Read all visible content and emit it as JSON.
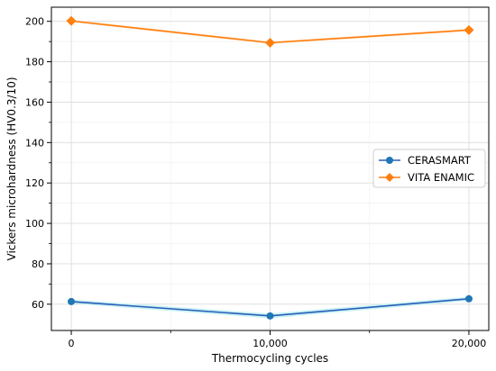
{
  "chart_data": {
    "type": "line",
    "xlabel": "Thermocycling cycles",
    "ylabel": "Vickers microhardness (HV0.3/10)",
    "x": [
      0,
      10000,
      20000
    ],
    "x_tick_labels": [
      "0",
      "10,000",
      "20,000"
    ],
    "xlim": [
      -1000,
      21000
    ],
    "ylim": [
      47,
      207
    ],
    "y_ticks": [
      60,
      80,
      100,
      120,
      140,
      160,
      180,
      200
    ],
    "grid": true,
    "legend_position": "center-right",
    "series": [
      {
        "name": "CERASMART",
        "values": [
          61.3,
          54.2,
          62.7
        ],
        "band_low": [
          60.3,
          53.0,
          61.7
        ],
        "band_high": [
          62.3,
          55.4,
          63.7
        ],
        "color": "#2a5db8",
        "marker_color": "#1f77b4",
        "band_color": "#bff0f2",
        "marker": "circle"
      },
      {
        "name": "VITA ENAMIC",
        "values": [
          200.2,
          189.4,
          195.7
        ],
        "band_low": [
          199.6,
          188.8,
          195.1
        ],
        "band_high": [
          200.8,
          190.0,
          196.3
        ],
        "color": "#ff7f0e",
        "marker_color": "#ff7f0e",
        "band_color": "#ffe0c2",
        "marker": "diamond"
      }
    ]
  }
}
